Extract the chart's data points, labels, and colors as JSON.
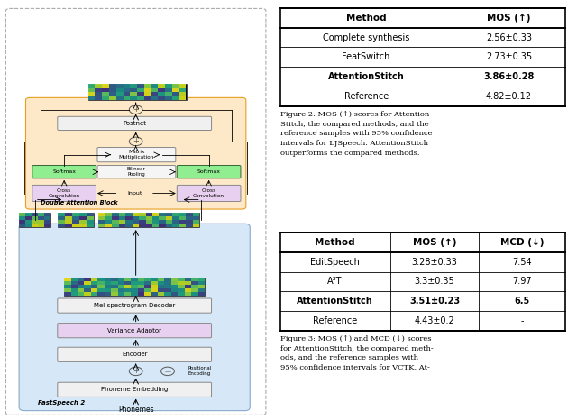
{
  "fig_width": 6.4,
  "fig_height": 4.66,
  "dpi": 100,
  "bg_color": "#ffffff",
  "table1": {
    "headers": [
      "Method",
      "MOS (↑)"
    ],
    "rows": [
      [
        "Complete synthesis",
        "2.56±0.33"
      ],
      [
        "FeatSwitch",
        "2.73±0.35"
      ],
      [
        "AttentionStitch",
        "3.86±0.28"
      ],
      [
        "Reference",
        "4.82±0.12"
      ]
    ],
    "bold_row": 2
  },
  "caption1": "Figure 2: MOS (↑) scores for Attention-\nStitch, the compared methods, and the\nreference samples with 95% confidence\nintervals for LJSpeech. AttentionStitch\noutperforms the compared methods.",
  "table2": {
    "headers": [
      "Method",
      "MOS (↑)",
      "MCD (↓)"
    ],
    "rows": [
      [
        "EditSpeech",
        "3.28±0.33",
        "7.54"
      ],
      [
        "A³T",
        "3.3±0.35",
        "7.97"
      ],
      [
        "AttentionStitch",
        "3.51±0.23",
        "6.5"
      ],
      [
        "Reference",
        "4.43±0.2",
        "-"
      ]
    ],
    "bold_row": 2
  },
  "caption2": "Figure 3: MOS (↑) and MCD (↓) scores\nfor AttentionStitch, the compared meth-\nods, and the reference samples with\n95% confidence intervals for VCTK. At-",
  "diagram": {
    "outer_border_color": "#aaaaaa",
    "fastspeech_bg": "#d6e8f7",
    "attention_bg": "#fde8c8",
    "softmax_color": "#90ee90",
    "cross_conv_color": "#e8d0f0",
    "postnet_color": "#f0f0f0",
    "encoder_color": "#f0f0f0",
    "variance_color": "#e8d0f0",
    "phoneme_embed_color": "#f0f0f0",
    "mel_decoder_color": "#f0f0f0"
  }
}
